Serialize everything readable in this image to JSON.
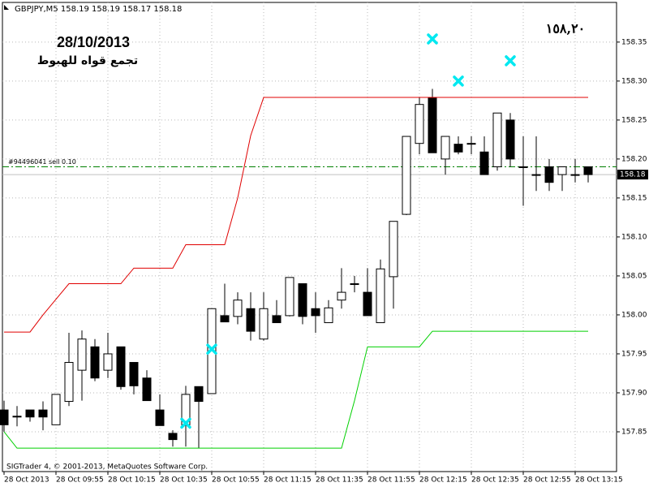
{
  "chart_data": {
    "type": "candlestick",
    "header": "GBPJPY,M5  158.19 158.19 158.17 158.18",
    "annotations": {
      "date": "28/10/2013",
      "comment": "تجمع قواه للهبوط",
      "price_note": "١٥٨,٢٠"
    },
    "footer": "SIGTrader 4, © 2001-2013, MetaQuotes Software Corp.",
    "categories": [
      "28 Oct 2013",
      null,
      null,
      null,
      "28 Oct 09:55",
      null,
      null,
      null,
      "28 Oct 10:15",
      null,
      null,
      null,
      "28 Oct 10:35",
      null,
      null,
      null,
      "28 Oct 10:55",
      null,
      null,
      null,
      "28 Oct 11:15",
      null,
      null,
      null,
      "28 Oct 11:35",
      null,
      null,
      null,
      "28 Oct 11:55",
      null,
      null,
      null,
      "28 Oct 12:15",
      null,
      null,
      null,
      "28 Oct 12:35",
      null,
      null,
      null,
      "28 Oct 12:55",
      null,
      null,
      null,
      "28 Oct 13:15",
      null
    ],
    "open": [
      157.878,
      157.87,
      157.878,
      157.878,
      157.859,
      157.889,
      157.929,
      157.959,
      157.929,
      157.959,
      157.939,
      157.919,
      157.878,
      157.848,
      157.859,
      157.908,
      157.899,
      157.999,
      157.998,
      158.008,
      157.969,
      157.999,
      157.999,
      158.04,
      158.008,
      157.99,
      158.019,
      158.04,
      158.029,
      157.99,
      158.049,
      158.129,
      158.22,
      158.279,
      158.2,
      158.219,
      158.22,
      158.209,
      158.19,
      158.25,
      158.19,
      158.18,
      158.19,
      158.18,
      158.18,
      158.19
    ],
    "high": [
      157.89,
      157.883,
      157.878,
      157.889,
      157.898,
      157.977,
      157.98,
      157.969,
      157.977,
      157.959,
      157.939,
      157.929,
      157.898,
      157.852,
      157.909,
      157.908,
      158.008,
      158.04,
      158.029,
      158.029,
      158.029,
      158.019,
      158.048,
      158.04,
      158.029,
      158.019,
      158.06,
      158.05,
      158.06,
      158.071,
      158.12,
      158.229,
      158.279,
      158.29,
      158.229,
      158.229,
      158.229,
      158.229,
      158.259,
      158.259,
      158.229,
      158.229,
      158.2,
      158.19,
      158.2,
      158.19
    ],
    "low": [
      157.85,
      157.857,
      157.863,
      157.852,
      157.859,
      157.883,
      157.89,
      157.915,
      157.919,
      157.904,
      157.898,
      157.89,
      157.858,
      157.831,
      157.831,
      157.829,
      157.899,
      157.991,
      157.988,
      157.967,
      157.967,
      157.99,
      157.998,
      157.988,
      157.977,
      157.99,
      158.008,
      158.029,
      157.999,
      157.99,
      158.008,
      158.128,
      158.206,
      158.208,
      158.18,
      158.206,
      158.206,
      158.18,
      158.185,
      158.19,
      158.14,
      158.159,
      158.159,
      158.159,
      158.17,
      158.17
    ],
    "close": [
      157.859,
      157.87,
      157.869,
      157.869,
      157.898,
      157.939,
      157.969,
      157.919,
      157.95,
      157.908,
      157.909,
      157.89,
      157.858,
      157.84,
      157.898,
      157.889,
      158.008,
      157.991,
      158.019,
      157.979,
      158.008,
      157.99,
      158.048,
      157.998,
      157.999,
      158.009,
      158.029,
      158.04,
      157.999,
      158.059,
      158.12,
      158.229,
      158.27,
      158.208,
      158.229,
      158.209,
      158.22,
      158.18,
      158.259,
      158.2,
      158.19,
      158.18,
      158.17,
      158.19,
      158.18,
      158.18
    ],
    "upper_band": {
      "color": "#e00000",
      "values": [
        157.978,
        157.978,
        157.978,
        158.0,
        158.02,
        158.04,
        158.04,
        158.04,
        158.04,
        158.04,
        158.06,
        158.06,
        158.06,
        158.06,
        158.09,
        158.09,
        158.09,
        158.09,
        158.15,
        158.23,
        158.279,
        158.279,
        158.279,
        158.279,
        158.279,
        158.279,
        158.279,
        158.279,
        158.279,
        158.279,
        158.279,
        158.279,
        158.279,
        158.279,
        158.279,
        158.279,
        158.279,
        158.279,
        158.279,
        158.279,
        158.279,
        158.279,
        158.279,
        158.279,
        158.279,
        158.279
      ]
    },
    "lower_band": {
      "color": "#00d000",
      "values": [
        157.85,
        157.829,
        157.829,
        157.829,
        157.829,
        157.829,
        157.829,
        157.829,
        157.829,
        157.829,
        157.829,
        157.829,
        157.829,
        157.829,
        157.829,
        157.829,
        157.829,
        157.829,
        157.829,
        157.829,
        157.829,
        157.829,
        157.829,
        157.829,
        157.829,
        157.829,
        157.829,
        157.89,
        157.959,
        157.959,
        157.959,
        157.959,
        157.959,
        157.979,
        157.979,
        157.979,
        157.979,
        157.979,
        157.979,
        157.979,
        157.979,
        157.979,
        157.979,
        157.979,
        157.979,
        157.979
      ]
    },
    "markers": {
      "color": "#00e8f0",
      "values": [
        null,
        null,
        null,
        null,
        null,
        null,
        null,
        null,
        null,
        null,
        null,
        null,
        null,
        null,
        157.861,
        null,
        157.956,
        null,
        null,
        null,
        null,
        null,
        null,
        null,
        null,
        null,
        null,
        null,
        null,
        null,
        null,
        null,
        null,
        158.354,
        null,
        158.3,
        null,
        null,
        null,
        158.326,
        null,
        null,
        null,
        null,
        null,
        null
      ]
    },
    "order_line": {
      "value": 158.19,
      "label": "#94496041 sell 0.10",
      "color": "#008000"
    },
    "bid_line": {
      "value": 158.18,
      "label": "158.18",
      "color": "#c0c0c0"
    },
    "up_color": "#ffffff",
    "down_color": "#000000",
    "ylim": [
      157.8,
      158.404
    ],
    "yticks": [
      157.85,
      {
        "value": 157.9,
        "label": "157.90"
      },
      157.95,
      {
        "value": 158.0,
        "label": "158.00"
      },
      158.05,
      {
        "value": 158.1,
        "label": "158.10"
      },
      158.15,
      {
        "value": 158.2,
        "label": "158.20"
      },
      158.25,
      {
        "value": 158.3,
        "label": "158.30"
      },
      158.35
    ],
    "grid": true
  }
}
